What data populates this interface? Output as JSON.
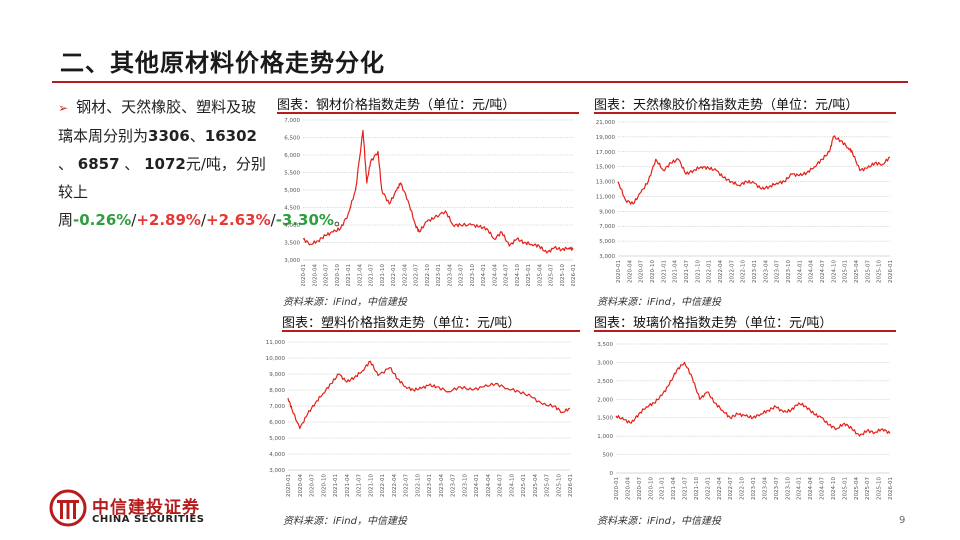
{
  "slide": {
    "title": "二、其他原材料价格走势分化",
    "page_number": "9"
  },
  "bullet": {
    "arrow": "➢",
    "text1": "钢材、天然橡胶、塑料及玻璃本周分别为",
    "v1": "3306",
    "sep1": "、",
    "v2": "16302",
    "sep2": " 、 ",
    "v3": "6857",
    "sep3": " 、 ",
    "v4": "1072",
    "text2": "元/吨，分别较上周",
    "c1": "-0.26%",
    "slash1": "/",
    "c2": "+2.89%",
    "slash2": "/",
    "c3": "+2.63%",
    "slash3": "/",
    "c4": "-3.30%",
    "end": "。"
  },
  "logo": {
    "cn": "中信建投证券",
    "en": "CHINA SECURITIES",
    "color": "#b71c1c"
  },
  "colors": {
    "line": "#e32119",
    "accent": "#b71c1c",
    "grid": "#999999"
  },
  "chart_data": [
    {
      "type": "line",
      "title": "图表：钢材价格指数走势（单位：元/吨）",
      "source": "资料来源：iFind，中信建投",
      "ylim": [
        3000,
        7000
      ],
      "yticks": [
        "7,000",
        "6,500",
        "6,000",
        "5,500",
        "5,000",
        "4,500",
        "4,000",
        "3,500",
        "3,000"
      ],
      "xticks": [
        "2020-01",
        "2020-04",
        "2020-07",
        "2020-10",
        "2021-01",
        "2021-04",
        "2021-07",
        "2021-10",
        "2022-01",
        "2022-04",
        "2022-07",
        "2022-10",
        "2023-01",
        "2023-04",
        "2023-07",
        "2023-10",
        "2024-01",
        "2024-04",
        "2024-07",
        "2024-10",
        "2025-01",
        "2025-04",
        "2025-07",
        "2025-10",
        "2026-01"
      ],
      "x": [
        "2020-01",
        "2020-03",
        "2020-05",
        "2020-07",
        "2020-09",
        "2020-11",
        "2021-01",
        "2021-03",
        "2021-05",
        "2021-06",
        "2021-07",
        "2021-09",
        "2021-10",
        "2021-12",
        "2022-02",
        "2022-03",
        "2022-05",
        "2022-07",
        "2022-08",
        "2022-10",
        "2022-12",
        "2023-03",
        "2023-05",
        "2023-07",
        "2023-10",
        "2023-12",
        "2024-02",
        "2024-04",
        "2024-06",
        "2024-08",
        "2024-10",
        "2024-12",
        "2025-02",
        "2025-04",
        "2025-06",
        "2025-08",
        "2025-10",
        "2025-12",
        "2026-01"
      ],
      "series": [
        {
          "values": [
            3600,
            3450,
            3550,
            3700,
            3800,
            3900,
            4300,
            5000,
            6700,
            5200,
            5800,
            6100,
            5000,
            4600,
            5000,
            5200,
            4700,
            4000,
            3800,
            4100,
            4200,
            4400,
            4000,
            4000,
            4000,
            3950,
            3900,
            3600,
            3800,
            3400,
            3600,
            3500,
            3450,
            3400,
            3200,
            3350,
            3300,
            3350,
            3306
          ]
        }
      ]
    },
    {
      "type": "line",
      "title": "图表：天然橡胶价格指数走势（单位：元/吨）",
      "source": "资料来源：iFind，中信建投",
      "ylim": [
        3000,
        21000
      ],
      "yticks": [
        "21,000",
        "19,000",
        "17,000",
        "15,000",
        "13,000",
        "11,000",
        "9,000",
        "7,000",
        "5,000",
        "3,000"
      ],
      "xticks": [
        "2020-01",
        "2020-04",
        "2020-07",
        "2020-10",
        "2021-01",
        "2021-04",
        "2021-07",
        "2021-10",
        "2022-01",
        "2022-04",
        "2022-07",
        "2022-10",
        "2023-01",
        "2023-04",
        "2023-07",
        "2023-10",
        "2024-01",
        "2024-04",
        "2024-07",
        "2024-10",
        "2025-01",
        "2025-04",
        "2025-07",
        "2025-10",
        "2026-01"
      ],
      "x": [
        "2020-01",
        "2020-03",
        "2020-05",
        "2020-07",
        "2020-09",
        "2020-11",
        "2021-01",
        "2021-03",
        "2021-05",
        "2021-07",
        "2021-09",
        "2021-11",
        "2022-01",
        "2022-03",
        "2022-05",
        "2022-07",
        "2022-09",
        "2022-11",
        "2023-01",
        "2023-03",
        "2023-05",
        "2023-07",
        "2023-09",
        "2023-11",
        "2024-01",
        "2024-03",
        "2024-05",
        "2024-07",
        "2024-09",
        "2024-10",
        "2024-12",
        "2025-02",
        "2025-03",
        "2025-05",
        "2025-07",
        "2025-09",
        "2025-11",
        "2026-01"
      ],
      "series": [
        {
          "values": [
            13000,
            10500,
            10000,
            11500,
            13000,
            16000,
            14500,
            15500,
            16000,
            14000,
            14500,
            15000,
            14800,
            14500,
            13500,
            13000,
            12500,
            13000,
            12800,
            12000,
            12300,
            12800,
            13000,
            14000,
            13800,
            14200,
            15000,
            16000,
            17000,
            19000,
            18500,
            17500,
            17000,
            14500,
            14800,
            15500,
            15300,
            16302
          ]
        }
      ]
    },
    {
      "type": "line",
      "title": "图表：塑料价格指数走势（单位：元/吨）",
      "source": "资料来源：iFind，中信建投",
      "ylim": [
        3000,
        11000
      ],
      "yticks": [
        "11,000",
        "10,000",
        "9,000",
        "8,000",
        "7,000",
        "6,000",
        "5,000",
        "4,000",
        "3,000"
      ],
      "xticks": [
        "2020-01",
        "2020-04",
        "2020-07",
        "2020-10",
        "2021-01",
        "2021-04",
        "2021-07",
        "2021-10",
        "2022-01",
        "2022-04",
        "2022-07",
        "2022-10",
        "2023-01",
        "2023-04",
        "2023-07",
        "2023-10",
        "2024-01",
        "2024-04",
        "2024-07",
        "2024-10",
        "2025-01",
        "2025-04",
        "2025-07",
        "2025-10",
        "2026-01"
      ],
      "x": [
        "2020-01",
        "2020-02",
        "2020-04",
        "2020-06",
        "2020-08",
        "2020-10",
        "2020-12",
        "2021-02",
        "2021-04",
        "2021-06",
        "2021-08",
        "2021-10",
        "2021-12",
        "2022-03",
        "2022-05",
        "2022-07",
        "2022-09",
        "2022-11",
        "2023-01",
        "2023-03",
        "2023-06",
        "2023-09",
        "2023-12",
        "2024-03",
        "2024-06",
        "2024-09",
        "2024-12",
        "2025-03",
        "2025-06",
        "2025-09",
        "2025-11",
        "2026-01"
      ],
      "series": [
        {
          "values": [
            7500,
            6800,
            5600,
            6500,
            7200,
            7800,
            8400,
            9000,
            8500,
            8800,
            9200,
            9800,
            8900,
            9400,
            8700,
            8200,
            8000,
            8100,
            8300,
            8200,
            7900,
            8200,
            8000,
            8200,
            8400,
            8100,
            7900,
            7600,
            7100,
            7000,
            6600,
            6857
          ]
        }
      ]
    },
    {
      "type": "line",
      "title": "图表：玻璃价格指数走势（单位：元/吨）",
      "source": "资料来源：iFind，中信建投",
      "ylim": [
        0,
        3500
      ],
      "yticks": [
        "3,500",
        "3,000",
        "2,500",
        "2,000",
        "1,500",
        "1,000",
        "500",
        "0"
      ],
      "xticks": [
        "2020-01",
        "2020-04",
        "2020-07",
        "2020-10",
        "2021-01",
        "2021-04",
        "2021-07",
        "2021-10",
        "2022-01",
        "2022-04",
        "2022-07",
        "2022-10",
        "2023-01",
        "2023-04",
        "2023-07",
        "2023-10",
        "2024-01",
        "2024-04",
        "2024-07",
        "2024-10",
        "2025-01",
        "2025-04",
        "2025-07",
        "2025-10",
        "2026-01"
      ],
      "x": [
        "2020-01",
        "2020-03",
        "2020-05",
        "2020-07",
        "2020-09",
        "2020-11",
        "2021-01",
        "2021-03",
        "2021-05",
        "2021-07",
        "2021-09",
        "2021-11",
        "2022-01",
        "2022-03",
        "2022-05",
        "2022-07",
        "2022-09",
        "2022-11",
        "2023-01",
        "2023-03",
        "2023-05",
        "2023-07",
        "2023-09",
        "2023-11",
        "2024-01",
        "2024-03",
        "2024-05",
        "2024-07",
        "2024-09",
        "2024-11",
        "2025-01",
        "2025-03",
        "2025-05",
        "2025-07",
        "2025-09",
        "2025-11",
        "2026-01"
      ],
      "series": [
        {
          "values": [
            1550,
            1450,
            1350,
            1600,
            1800,
            1900,
            2100,
            2400,
            2800,
            3000,
            2600,
            2000,
            2200,
            1900,
            1700,
            1500,
            1600,
            1550,
            1500,
            1600,
            1700,
            1800,
            1650,
            1700,
            1900,
            1800,
            1600,
            1500,
            1300,
            1200,
            1350,
            1200,
            1000,
            1150,
            1100,
            1200,
            1072
          ]
        }
      ]
    }
  ]
}
